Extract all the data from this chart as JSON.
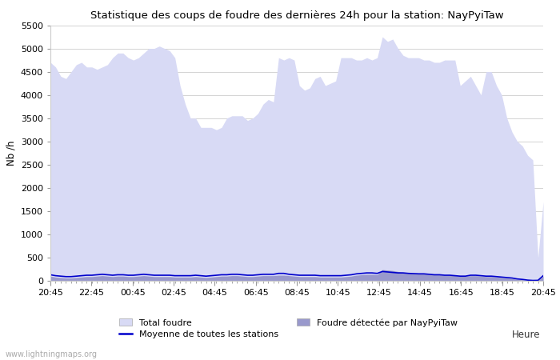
{
  "title": "Statistique des coups de foudre des dernières 24h pour la station: NayPyiTaw",
  "xlabel": "Heure",
  "ylabel": "Nb /h",
  "ylim": [
    0,
    5500
  ],
  "yticks": [
    0,
    500,
    1000,
    1500,
    2000,
    2500,
    3000,
    3500,
    4000,
    4500,
    5000,
    5500
  ],
  "xtick_labels": [
    "20:45",
    "22:45",
    "00:45",
    "02:45",
    "04:45",
    "06:45",
    "08:45",
    "10:45",
    "12:45",
    "14:45",
    "16:45",
    "18:45",
    "20:45"
  ],
  "background_color": "#ffffff",
  "plot_bg_color": "#ffffff",
  "grid_color": "#cccccc",
  "total_foudre_color": "#d8daf5",
  "detected_color": "#9999cc",
  "moyenne_color": "#0000cc",
  "watermark": "www.lightningmaps.org",
  "x": [
    0,
    1,
    2,
    3,
    4,
    5,
    6,
    7,
    8,
    9,
    10,
    11,
    12,
    13,
    14,
    15,
    16,
    17,
    18,
    19,
    20,
    21,
    22,
    23,
    24,
    25,
    26,
    27,
    28,
    29,
    30,
    31,
    32,
    33,
    34,
    35,
    36,
    37,
    38,
    39,
    40,
    41,
    42,
    43,
    44,
    45,
    46,
    47,
    48,
    49,
    50,
    51,
    52,
    53,
    54,
    55,
    56,
    57,
    58,
    59,
    60,
    61,
    62,
    63,
    64,
    65,
    66,
    67,
    68,
    69,
    70,
    71,
    72,
    73,
    74,
    75,
    76,
    77,
    78,
    79,
    80,
    81,
    82,
    83,
    84,
    85,
    86,
    87,
    88,
    89,
    90,
    91,
    92,
    93,
    94,
    95
  ],
  "total_foudre_y": [
    4700,
    4600,
    4400,
    4350,
    4500,
    4650,
    4700,
    4600,
    4600,
    4550,
    4600,
    4650,
    4800,
    4900,
    4900,
    4800,
    4750,
    4800,
    4900,
    5000,
    5000,
    5050,
    5000,
    4950,
    4800,
    4200,
    3800,
    3500,
    3500,
    3300,
    3300,
    3300,
    3250,
    3300,
    3500,
    3550,
    3550,
    3550,
    3450,
    3500,
    3600,
    3800,
    3900,
    3850,
    4800,
    4750,
    4800,
    4750,
    4200,
    4100,
    4150,
    4350,
    4400,
    4200,
    4250,
    4300,
    4800,
    4800,
    4800,
    4750,
    4750,
    4800,
    4750,
    4800,
    5250,
    5150,
    5200,
    5000,
    4850,
    4800,
    4800,
    4800,
    4750,
    4750,
    4700,
    4700,
    4750,
    4750,
    4750,
    4200,
    4300,
    4400,
    4200,
    4000,
    4500,
    4500,
    4200,
    4000,
    3500,
    3200,
    3000,
    2900,
    2700,
    2600,
    500,
    1700
  ],
  "detected_y": [
    100,
    80,
    70,
    60,
    60,
    70,
    80,
    90,
    90,
    100,
    110,
    100,
    90,
    100,
    100,
    90,
    90,
    100,
    110,
    100,
    90,
    90,
    90,
    90,
    80,
    80,
    80,
    80,
    90,
    80,
    70,
    80,
    90,
    100,
    100,
    110,
    110,
    100,
    90,
    90,
    100,
    110,
    110,
    110,
    120,
    120,
    110,
    100,
    90,
    90,
    90,
    90,
    80,
    80,
    80,
    80,
    80,
    90,
    100,
    120,
    130,
    140,
    140,
    130,
    240,
    230,
    220,
    200,
    180,
    170,
    160,
    150,
    150,
    140,
    130,
    130,
    120,
    120,
    110,
    100,
    100,
    110,
    110,
    100,
    90,
    90,
    80,
    70,
    60,
    50,
    30,
    20,
    10,
    5,
    5,
    100
  ],
  "moyenne_y": [
    130,
    110,
    100,
    90,
    90,
    100,
    110,
    120,
    120,
    130,
    140,
    130,
    120,
    130,
    130,
    120,
    120,
    130,
    140,
    130,
    120,
    120,
    120,
    120,
    110,
    110,
    110,
    110,
    120,
    110,
    100,
    110,
    120,
    130,
    130,
    140,
    140,
    130,
    120,
    120,
    130,
    140,
    140,
    140,
    160,
    160,
    140,
    130,
    120,
    120,
    120,
    120,
    110,
    110,
    110,
    110,
    110,
    120,
    130,
    150,
    160,
    170,
    170,
    160,
    200,
    190,
    180,
    170,
    170,
    160,
    155,
    150,
    150,
    140,
    130,
    130,
    120,
    120,
    110,
    100,
    100,
    120,
    120,
    110,
    100,
    100,
    90,
    80,
    70,
    60,
    40,
    30,
    15,
    8,
    10,
    110
  ]
}
